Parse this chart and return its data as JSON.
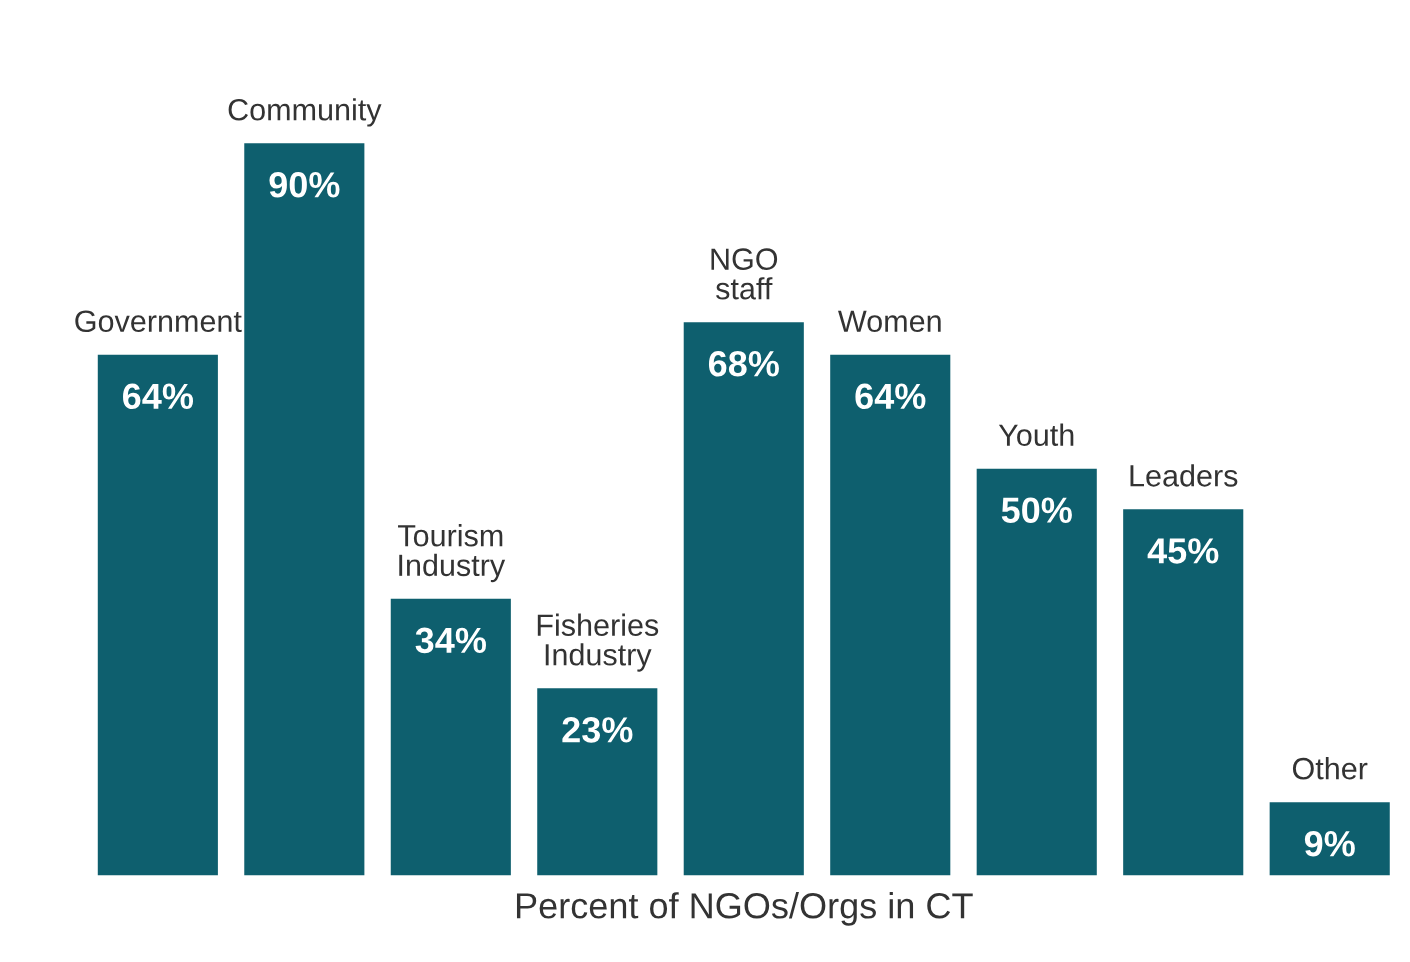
{
  "chart_data": {
    "type": "bar",
    "xlabel": "Percent of NGOs/Orgs in CT",
    "categories": [
      "Government",
      "Community",
      "Tourism\nIndustry",
      "Fisheries\nIndustry",
      "NGO\nstaff",
      "Women",
      "Youth",
      "Leaders",
      "Other"
    ],
    "values": [
      64,
      90,
      34,
      23,
      68,
      64,
      50,
      45,
      9
    ],
    "value_labels": [
      "64%",
      "90%",
      "34%",
      "23%",
      "68%",
      "64%",
      "50%",
      "45%",
      "9%"
    ],
    "color": "#0e5f6e"
  }
}
